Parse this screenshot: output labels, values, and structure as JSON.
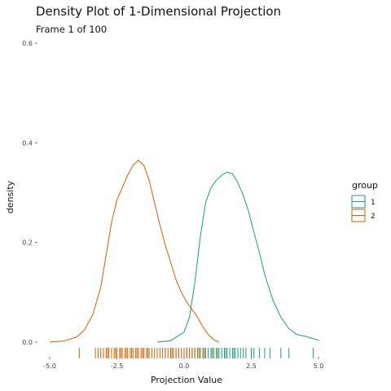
{
  "chart_data": {
    "type": "area",
    "title": "Density Plot of 1-Dimensional Projection",
    "subtitle": "Frame 1 of 100",
    "xlabel": "Projection Value",
    "ylabel": "density",
    "xlim": [
      -5.0,
      5.0
    ],
    "ylim": [
      0.0,
      0.6
    ],
    "x_ticks": [
      -5.0,
      -2.5,
      0.0,
      2.5,
      5.0
    ],
    "x_tick_labels": [
      "-5.0",
      "-2.5",
      "0.0",
      "2.5",
      "5.0"
    ],
    "y_ticks": [
      0.0,
      0.2,
      0.4,
      0.6
    ],
    "y_tick_labels": [
      "0.0",
      "0.2",
      "0.4",
      "0.6"
    ],
    "grid": false,
    "legend": {
      "title": "group",
      "placement": "right",
      "entries": [
        "1",
        "2"
      ]
    },
    "series": [
      {
        "name": "1",
        "color": "#1b9e77",
        "x": [
          -1.0,
          -0.5,
          0.0,
          0.2,
          0.4,
          0.6,
          0.8,
          1.0,
          1.2,
          1.4,
          1.6,
          1.8,
          2.0,
          2.2,
          2.4,
          2.6,
          2.8,
          3.0,
          3.3,
          3.6,
          3.9,
          4.2,
          4.5,
          4.8,
          5.0
        ],
        "y": [
          0.0,
          0.003,
          0.02,
          0.05,
          0.12,
          0.21,
          0.28,
          0.31,
          0.325,
          0.335,
          0.341,
          0.338,
          0.32,
          0.295,
          0.262,
          0.22,
          0.18,
          0.135,
          0.085,
          0.05,
          0.027,
          0.015,
          0.012,
          0.007,
          0.004
        ]
      },
      {
        "name": "2",
        "color": "#d95f02",
        "x": [
          -5.0,
          -4.5,
          -4.0,
          -3.7,
          -3.4,
          -3.1,
          -2.9,
          -2.7,
          -2.5,
          -2.3,
          -2.1,
          -1.9,
          -1.7,
          -1.5,
          -1.3,
          -1.1,
          -0.9,
          -0.7,
          -0.5,
          -0.3,
          -0.1,
          0.1,
          0.3,
          0.5,
          0.7,
          0.9,
          1.1,
          1.3
        ],
        "y": [
          0.0,
          0.002,
          0.01,
          0.025,
          0.055,
          0.11,
          0.175,
          0.24,
          0.285,
          0.31,
          0.335,
          0.355,
          0.365,
          0.355,
          0.325,
          0.28,
          0.235,
          0.195,
          0.16,
          0.125,
          0.1,
          0.08,
          0.065,
          0.05,
          0.03,
          0.015,
          0.005,
          0.0
        ]
      }
    ],
    "rug": [
      {
        "name": "1",
        "color": "#1b9e77",
        "values": [
          -0.7,
          -0.5,
          -0.3,
          -0.2,
          0.0,
          0.1,
          0.2,
          0.3,
          0.4,
          0.5,
          0.55,
          0.6,
          0.7,
          0.75,
          0.8,
          0.9,
          1.0,
          1.05,
          1.1,
          1.2,
          1.25,
          1.3,
          1.4,
          1.5,
          1.55,
          1.6,
          1.7,
          1.8,
          1.85,
          1.9,
          2.0,
          2.1,
          2.2,
          2.3,
          2.5,
          2.6,
          2.8,
          3.0,
          3.2,
          3.6,
          3.9,
          4.8
        ]
      },
      {
        "name": "2",
        "color": "#d95f02",
        "values": [
          -3.9,
          -3.3,
          -3.2,
          -3.1,
          -3.0,
          -2.9,
          -2.85,
          -2.8,
          -2.7,
          -2.6,
          -2.55,
          -2.5,
          -2.4,
          -2.35,
          -2.3,
          -2.2,
          -2.15,
          -2.1,
          -2.0,
          -1.95,
          -1.9,
          -1.8,
          -1.75,
          -1.7,
          -1.6,
          -1.55,
          -1.5,
          -1.4,
          -1.35,
          -1.3,
          -1.2,
          -1.1,
          -1.0,
          -0.9,
          -0.8,
          -0.7,
          -0.6,
          -0.5,
          -0.45,
          -0.4,
          -0.3,
          -0.2,
          -0.1,
          0.0,
          0.1,
          0.2,
          0.3,
          0.4,
          0.5,
          0.6,
          0.7,
          0.8,
          1.2
        ]
      }
    ]
  }
}
